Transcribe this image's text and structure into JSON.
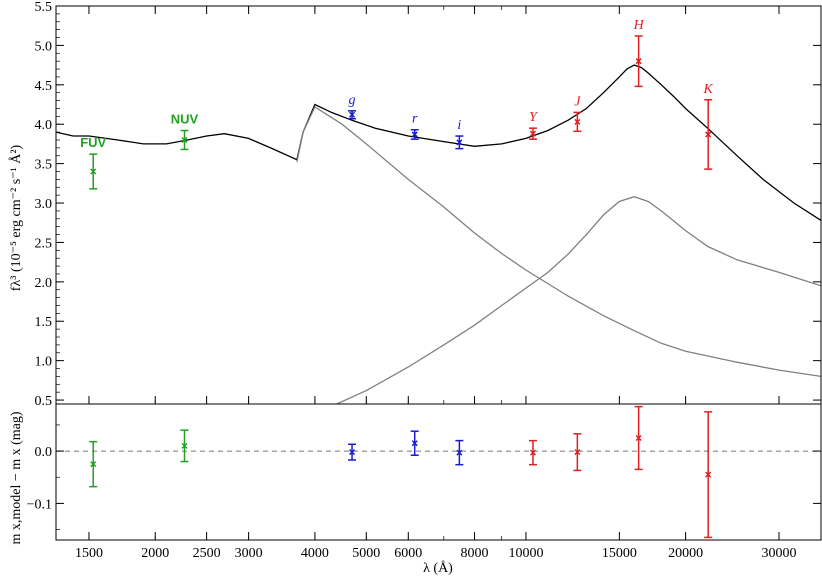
{
  "chart_data": [
    {
      "type": "line",
      "panel": "top",
      "xscale": "log",
      "xlim": [
        1300,
        36000
      ],
      "ylim": [
        0.45,
        5.5
      ],
      "ylabel": "fλ³ (10⁻⁵ erg cm⁻² s⁻¹ Å²)",
      "ytick_labels": [
        "0.5",
        "1.0",
        "1.5",
        "2.0",
        "2.5",
        "3.0",
        "3.5",
        "4.0",
        "4.5",
        "5.0",
        "5.5"
      ],
      "grid": false,
      "series": [
        {
          "color": "#000000",
          "x": [
            1300,
            1400,
            1500,
            1700,
            1900,
            2100,
            2300,
            2500,
            2700,
            3000,
            3300,
            3700,
            3800,
            4000,
            4300,
            4700,
            5200,
            6000,
            7000,
            8000,
            9000,
            10000,
            11000,
            12000,
            13000,
            14000,
            15000,
            15500,
            16000,
            16500,
            17000,
            18000,
            19000,
            20000,
            22000,
            25000,
            28000,
            32000,
            36000
          ],
          "y": [
            3.9,
            3.85,
            3.85,
            3.8,
            3.75,
            3.75,
            3.8,
            3.85,
            3.88,
            3.82,
            3.7,
            3.55,
            3.9,
            4.25,
            4.15,
            4.05,
            3.95,
            3.85,
            3.78,
            3.72,
            3.75,
            3.82,
            3.92,
            4.05,
            4.2,
            4.4,
            4.6,
            4.7,
            4.75,
            4.72,
            4.65,
            4.5,
            4.35,
            4.2,
            3.95,
            3.6,
            3.3,
            3.0,
            2.78
          ]
        },
        {
          "color": "#808080",
          "x": [
            3700,
            3800,
            4000,
            4500,
            5000,
            6000,
            7000,
            8000,
            9000,
            10000,
            12000,
            14000,
            16000,
            18000,
            20000,
            25000,
            30000,
            36000
          ],
          "y": [
            3.52,
            3.9,
            4.22,
            4.0,
            3.75,
            3.3,
            2.95,
            2.62,
            2.36,
            2.15,
            1.82,
            1.57,
            1.38,
            1.22,
            1.12,
            0.98,
            0.88,
            0.8
          ]
        },
        {
          "color": "#808080",
          "x": [
            4400,
            5000,
            6000,
            7000,
            8000,
            9000,
            10000,
            11000,
            12000,
            13000,
            14000,
            15000,
            16000,
            17000,
            18000,
            20000,
            22000,
            25000,
            30000,
            36000
          ],
          "y": [
            0.45,
            0.62,
            0.92,
            1.2,
            1.45,
            1.7,
            1.92,
            2.12,
            2.35,
            2.6,
            2.85,
            3.02,
            3.08,
            3.02,
            2.9,
            2.65,
            2.45,
            2.28,
            2.12,
            1.95
          ]
        }
      ],
      "photometry": [
        {
          "band": "FUV",
          "x": 1528,
          "y": 3.4,
          "err": 0.22,
          "color": "#22a022"
        },
        {
          "band": "NUV",
          "x": 2271,
          "y": 3.8,
          "err": 0.12,
          "color": "#22a022"
        },
        {
          "band": "g",
          "x": 4700,
          "y": 4.12,
          "err": 0.05,
          "color": "#1a1ad0"
        },
        {
          "band": "r",
          "x": 6170,
          "y": 3.87,
          "err": 0.06,
          "color": "#1a1ad0"
        },
        {
          "band": "i",
          "x": 7490,
          "y": 3.77,
          "err": 0.08,
          "color": "#1a1ad0"
        },
        {
          "band": "Y",
          "x": 10310,
          "y": 3.88,
          "err": 0.07,
          "color": "#e02020"
        },
        {
          "band": "J",
          "x": 12500,
          "y": 4.03,
          "err": 0.12,
          "color": "#e02020"
        },
        {
          "band": "H",
          "x": 16310,
          "y": 4.8,
          "err": 0.32,
          "color": "#e02020"
        },
        {
          "band": "K",
          "x": 22060,
          "y": 3.87,
          "err": 0.44,
          "color": "#e02020"
        }
      ]
    },
    {
      "type": "scatter",
      "panel": "bottom",
      "xscale": "log",
      "xlim": [
        1300,
        36000
      ],
      "ylim": [
        -0.17,
        0.09
      ],
      "xlabel": "λ (Å)",
      "ylabel": "m x,model − m x (mag)",
      "ytick_labels": [
        "−0.1",
        "0.0"
      ],
      "xtick_labels": [
        "1500",
        "2000",
        "2500",
        "3000",
        "4000",
        "5000",
        "6000",
        "8000",
        "10000",
        "15000",
        "20000",
        "30000"
      ],
      "reference_line": 0.0,
      "points": [
        {
          "band": "FUV",
          "x": 1528,
          "y": -0.025,
          "err": 0.043,
          "color": "#22a022"
        },
        {
          "band": "NUV",
          "x": 2271,
          "y": 0.01,
          "err": 0.03,
          "color": "#22a022"
        },
        {
          "band": "g",
          "x": 4700,
          "y": -0.002,
          "err": 0.015,
          "color": "#1a1ad0"
        },
        {
          "band": "r",
          "x": 6170,
          "y": 0.015,
          "err": 0.023,
          "color": "#1a1ad0"
        },
        {
          "band": "i",
          "x": 7490,
          "y": -0.003,
          "err": 0.023,
          "color": "#1a1ad0"
        },
        {
          "band": "Y",
          "x": 10310,
          "y": -0.003,
          "err": 0.023,
          "color": "#e02020"
        },
        {
          "band": "J",
          "x": 12500,
          "y": -0.002,
          "err": 0.035,
          "color": "#e02020"
        },
        {
          "band": "H",
          "x": 16310,
          "y": 0.025,
          "err": 0.06,
          "color": "#e02020"
        },
        {
          "band": "K",
          "x": 22060,
          "y": -0.045,
          "err": 0.12,
          "color": "#e02020"
        }
      ]
    }
  ]
}
